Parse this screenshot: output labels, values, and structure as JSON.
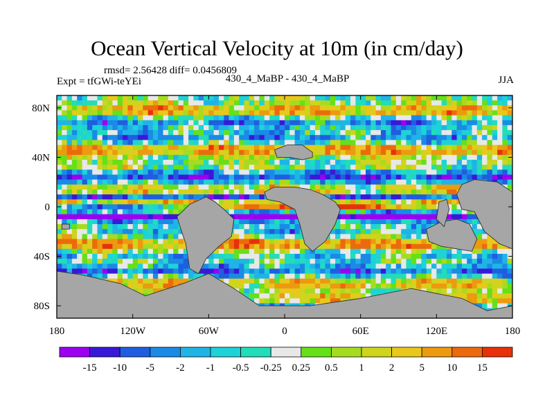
{
  "header": {
    "title": "Ocean Vertical Velocity at 10m (in cm/day)",
    "stats": "rmsd= 2.56428 diff= 0.0456809",
    "expt": "Expt = tfGWi-teYEi",
    "comparison": "430_4_MaBP - 430_4_MaBP",
    "season": "JJA"
  },
  "chart_data": {
    "type": "heatmap",
    "title": "Ocean Vertical Velocity at 10m (in cm/day)",
    "xlabel": "",
    "ylabel": "",
    "xlim": [
      -180,
      180
    ],
    "ylim": [
      -90,
      90
    ],
    "x_ticks": [
      {
        "value": -180,
        "label": "180"
      },
      {
        "value": -120,
        "label": "120W"
      },
      {
        "value": -60,
        "label": "60W"
      },
      {
        "value": 0,
        "label": "0"
      },
      {
        "value": 60,
        "label": "60E"
      },
      {
        "value": 120,
        "label": "120E"
      },
      {
        "value": 180,
        "label": "180"
      }
    ],
    "y_ticks": [
      {
        "value": 80,
        "label": "80N"
      },
      {
        "value": 40,
        "label": "40N"
      },
      {
        "value": 0,
        "label": "0"
      },
      {
        "value": -40,
        "label": "40S"
      },
      {
        "value": -80,
        "label": "80S"
      }
    ],
    "colorbar": {
      "labels": [
        "-15",
        "-10",
        "-5",
        "-2",
        "-1",
        "-0.5",
        "-0.25",
        "0.25",
        "0.5",
        "1",
        "2",
        "5",
        "10",
        "15"
      ],
      "colors": [
        "#9b00f0",
        "#3a18d8",
        "#1f5ee0",
        "#1a8ae6",
        "#20b4e6",
        "#1ed2d8",
        "#22ddb8",
        "#e8e8e8",
        "#66e018",
        "#a6dc20",
        "#cfd41c",
        "#e8c81c",
        "#ec9a10",
        "#ec6a0c",
        "#e8300a"
      ]
    },
    "land_color": "#a6a6a6"
  }
}
